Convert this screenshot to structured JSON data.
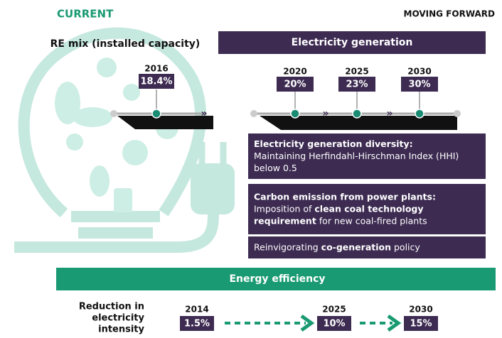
{
  "header": {
    "current": "CURRENT",
    "moving_forward": "MOVING FORWARD"
  },
  "re_mix": {
    "title": "RE mix (installed capacity)",
    "year": "2016",
    "value": "18.4%"
  },
  "electricity": {
    "title": "Electricity generation",
    "milestones": [
      {
        "year": "2020",
        "value": "20%"
      },
      {
        "year": "2025",
        "value": "23%"
      },
      {
        "year": "2030",
        "value": "30%"
      }
    ],
    "boxes": [
      {
        "lines": [
          [
            {
              "text": "Electricity generation diversity:",
              "bold": true
            }
          ],
          [
            {
              "text": "Maintaining Herfindahl-Hirschman Index (HHI)",
              "bold": false
            }
          ],
          [
            {
              "text": "below 0.5",
              "bold": false
            }
          ]
        ]
      },
      {
        "lines": [
          [
            {
              "text": "Carbon emission from power plants:",
              "bold": true
            }
          ],
          [
            {
              "text": "Imposition of ",
              "bold": false
            },
            {
              "text": "clean coal technology",
              "bold": true
            }
          ],
          [
            {
              "text": "requirement",
              "bold": true
            },
            {
              "text": " for new coal-fired plants",
              "bold": false
            }
          ]
        ]
      },
      {
        "lines": [
          [
            {
              "text": "Reinvigorating ",
              "bold": false
            },
            {
              "text": "co-generation",
              "bold": true
            },
            {
              "text": " policy",
              "bold": false
            }
          ]
        ]
      }
    ]
  },
  "efficiency": {
    "title": "Energy efficiency",
    "label": [
      "Reduction in",
      "electricity",
      "intensity"
    ],
    "milestones": [
      {
        "year": "2014",
        "value": "1.5%"
      },
      {
        "year": "2025",
        "value": "10%"
      },
      {
        "year": "2030",
        "value": "15%"
      }
    ]
  }
}
